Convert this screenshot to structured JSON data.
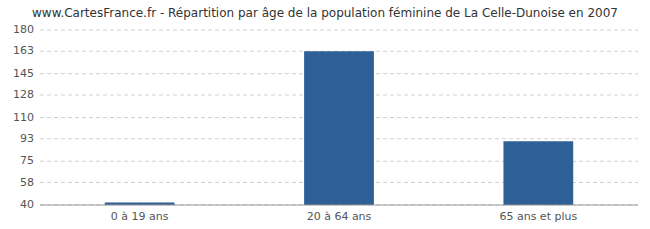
{
  "chart_data": {
    "type": "bar",
    "title": "www.CartesFrance.fr - Répartition par âge de la population féminine de La Celle-Dunoise en 2007",
    "categories": [
      "0 à 19 ans",
      "20 à 64 ans",
      "65 ans et plus"
    ],
    "values": [
      42,
      163,
      91
    ],
    "color": "#2e5f96",
    "ylim": [
      40,
      180
    ],
    "yticks": [
      40,
      58,
      75,
      93,
      110,
      128,
      145,
      163,
      180
    ],
    "grid": true
  }
}
